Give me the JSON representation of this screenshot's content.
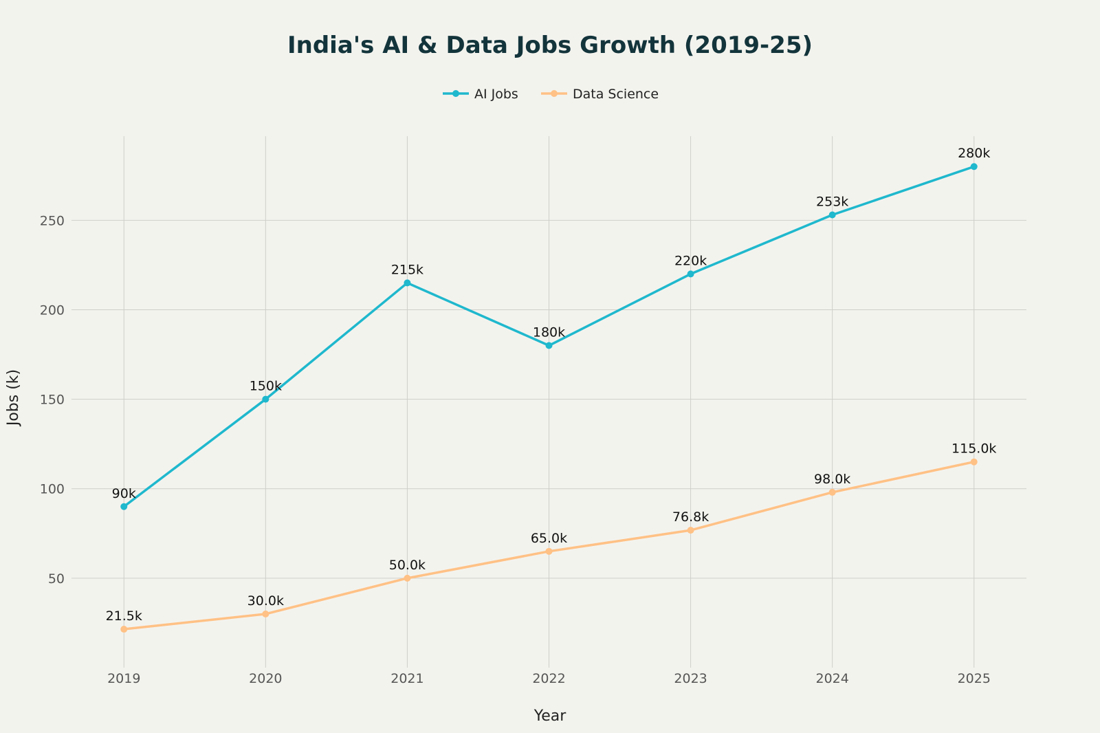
{
  "chart_data": {
    "type": "line",
    "title": "India's AI & Data Jobs Growth (2019-25)",
    "xlabel": "Year",
    "ylabel": "Jobs (k)",
    "x": [
      2019,
      2020,
      2021,
      2022,
      2023,
      2024,
      2025
    ],
    "x_tick_labels": [
      "2019",
      "2020",
      "2021",
      "2022",
      "2023",
      "2024",
      "2025"
    ],
    "y_ticks": [
      50,
      100,
      150,
      200,
      250
    ],
    "y_tick_labels": [
      "50",
      "100",
      "150",
      "200",
      "250"
    ],
    "ylim": [
      0,
      297
    ],
    "grid": true,
    "legend_position": "top-center",
    "series": [
      {
        "name": "AI Jobs",
        "color": "#1FB8CD",
        "values": [
          90,
          150,
          215,
          180,
          220,
          253,
          280
        ],
        "labels": [
          "90k",
          "150k",
          "215k",
          "180k",
          "220k",
          "253k",
          "280k"
        ]
      },
      {
        "name": "Data Science",
        "color": "#FFC185",
        "values": [
          21.5,
          30.0,
          50.0,
          65.0,
          76.8,
          98.0,
          115.0
        ],
        "labels": [
          "21.5k",
          "30.0k",
          "50.0k",
          "65.0k",
          "76.8k",
          "98.0k",
          "115.0k"
        ]
      }
    ]
  }
}
